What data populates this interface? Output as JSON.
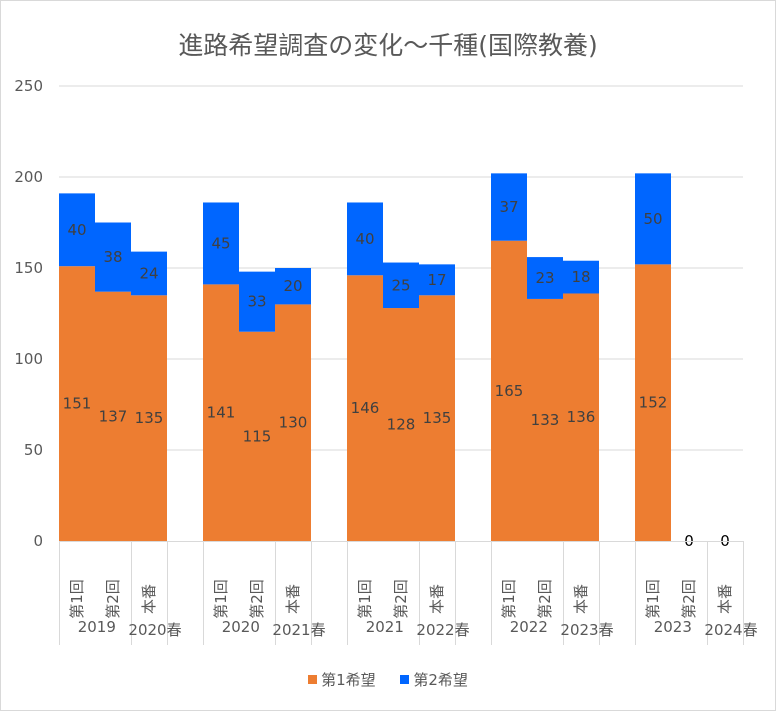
{
  "chart_data": {
    "type": "bar",
    "stacked": true,
    "title": "進路希望調査の変化〜千種(国際教養)",
    "xlabel": "",
    "ylabel": "",
    "ylim": [
      0,
      250
    ],
    "yticks": [
      0,
      50,
      100,
      150,
      200,
      250
    ],
    "grid": true,
    "legend_position": "bottom",
    "groups": [
      {
        "year": "2019",
        "spring": "2020春",
        "categories": [
          "第1回",
          "第2回",
          "本番"
        ]
      },
      {
        "year": "2020",
        "spring": "2021春",
        "categories": [
          "第1回",
          "第2回",
          "本番"
        ]
      },
      {
        "year": "2021",
        "spring": "2022春",
        "categories": [
          "第1回",
          "第2回",
          "本番"
        ]
      },
      {
        "year": "2022",
        "spring": "2023春",
        "categories": [
          "第1回",
          "第2回",
          "本番"
        ]
      },
      {
        "year": "2023",
        "spring": "2024春",
        "categories": [
          "第1回",
          "第2回",
          "本番"
        ]
      }
    ],
    "series": [
      {
        "name": "第1希望",
        "color": "#ed7d31",
        "values": [
          [
            151,
            137,
            135
          ],
          [
            141,
            115,
            130
          ],
          [
            146,
            128,
            135
          ],
          [
            165,
            133,
            136
          ],
          [
            152,
            0,
            0
          ]
        ]
      },
      {
        "name": "第2希望",
        "color": "#0066ff",
        "values": [
          [
            40,
            38,
            24
          ],
          [
            45,
            33,
            20
          ],
          [
            40,
            25,
            17
          ],
          [
            37,
            23,
            18
          ],
          [
            50,
            0,
            0
          ]
        ]
      }
    ],
    "zero_labels": [
      "0",
      "0"
    ]
  }
}
